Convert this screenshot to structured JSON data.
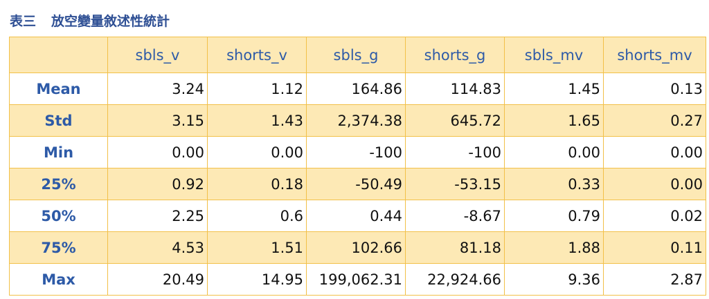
{
  "header": {
    "label": "表三",
    "title": "放空變量敘述性統計"
  },
  "table": {
    "columns": [
      "sbls_v",
      "shorts_v",
      "sbls_g",
      "shorts_g",
      "sbls_mv",
      "shorts_mv"
    ],
    "rows": [
      [
        "Mean",
        "3.24",
        "1.12",
        "164.86",
        "114.83",
        "1.45",
        "0.13"
      ],
      [
        "Std",
        "3.15",
        "1.43",
        "2,374.38",
        "645.72",
        "1.65",
        "0.27"
      ],
      [
        "Min",
        "0.00",
        "0.00",
        "-100",
        "-100",
        "0.00",
        "0.00"
      ],
      [
        "25%",
        "0.92",
        "0.18",
        "-50.49",
        "-53.15",
        "0.33",
        "0.00"
      ],
      [
        "50%",
        "2.25",
        "0.6",
        "0.44",
        "-8.67",
        "0.79",
        "0.02"
      ],
      [
        "75%",
        "4.53",
        "1.51",
        "102.66",
        "81.18",
        "1.88",
        "0.11"
      ],
      [
        "Max",
        "20.49",
        "14.95",
        "199,062.31",
        "22,924.66",
        "9.36",
        "2.87"
      ]
    ]
  }
}
